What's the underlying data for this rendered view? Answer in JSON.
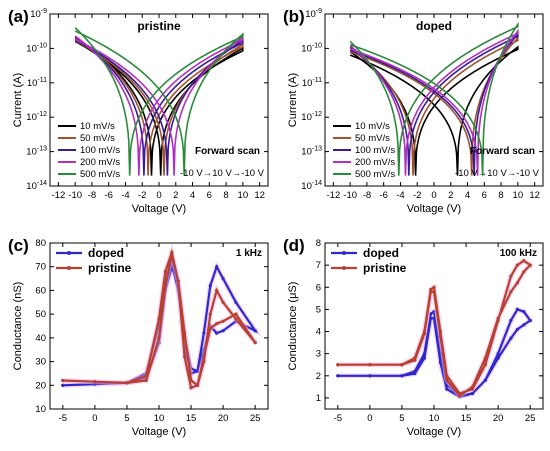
{
  "chart_data": [
    {
      "panel": "(a)",
      "type": "line",
      "title": "pristine",
      "xlabel": "Voltage (V)",
      "ylabel": "Current (A)",
      "xlim": [
        -13,
        13
      ],
      "xticks": [
        -12,
        -10,
        -8,
        -6,
        -4,
        -2,
        0,
        2,
        4,
        6,
        8,
        10,
        12
      ],
      "y_scale": "log",
      "ylim": [
        1e-14,
        1e-09
      ],
      "yticks": [
        1e-14,
        1e-13,
        1e-12,
        1e-11,
        1e-10,
        1e-09
      ],
      "ytick_labels": [
        "10^-14",
        "10^-13",
        "10^-12",
        "10^-11",
        "10^-10",
        "10^-9"
      ],
      "legend_position": "bottom-left",
      "annotation": {
        "title": "Forward scan",
        "text": "-10 V→10 V→-10 V"
      },
      "series": [
        {
          "name": "10 mV/s",
          "color": "#000000",
          "v_min_fwd": -0.9,
          "v_min_bwd": 0.2,
          "i_left": 2e-10,
          "i_right": 1e-10
        },
        {
          "name": "50 mV/s",
          "color": "#a0522d",
          "v_min_fwd": -1.3,
          "v_min_bwd": 0.6,
          "i_left": 2.1e-10,
          "i_right": 1.3e-10
        },
        {
          "name": "100 mV/s",
          "color": "#3a1a9a",
          "v_min_fwd": -1.8,
          "v_min_bwd": 1.0,
          "i_left": 2.2e-10,
          "i_right": 1.7e-10
        },
        {
          "name": "200 mV/s",
          "color": "#b030c0",
          "v_min_fwd": -2.4,
          "v_min_bwd": 1.8,
          "i_left": 2.3e-10,
          "i_right": 2.1e-10
        },
        {
          "name": "500 mV/s",
          "color": "#2a8a3a",
          "v_min_fwd": -3.5,
          "v_min_bwd": 3.0,
          "i_left": 4e-10,
          "i_right": 2.6e-10
        }
      ]
    },
    {
      "panel": "(b)",
      "type": "line",
      "title": "doped",
      "xlabel": "Voltage (V)",
      "ylabel": "Current (A)",
      "xlim": [
        -13,
        13
      ],
      "xticks": [
        -12,
        -10,
        -8,
        -6,
        -4,
        -2,
        0,
        2,
        4,
        6,
        8,
        10,
        12
      ],
      "y_scale": "log",
      "ylim": [
        1e-14,
        1e-09
      ],
      "yticks": [
        1e-14,
        1e-13,
        1e-12,
        1e-11,
        1e-10,
        1e-09
      ],
      "ytick_labels": [
        "10^-14",
        "10^-13",
        "10^-12",
        "10^-11",
        "10^-10",
        "10^-9"
      ],
      "legend_position": "bottom-left",
      "annotation": {
        "title": "Forward scan",
        "text": "-10 V→10 V→-10 V"
      },
      "series": [
        {
          "name": "10 mV/s",
          "color": "#000000",
          "v_min_fwd": -2.2,
          "v_min_bwd": 2.8,
          "i_left": 8e-11,
          "i_right": 1.1e-10
        },
        {
          "name": "50 mV/s",
          "color": "#a0522d",
          "v_min_fwd": -2.5,
          "v_min_bwd": 4.5,
          "i_left": 1e-10,
          "i_right": 2e-10
        },
        {
          "name": "100 mV/s",
          "color": "#3a1a9a",
          "v_min_fwd": -3.0,
          "v_min_bwd": 4.8,
          "i_left": 1.1e-10,
          "i_right": 2.6e-10
        },
        {
          "name": "200 mV/s",
          "color": "#b030c0",
          "v_min_fwd": -3.4,
          "v_min_bwd": 5.2,
          "i_left": 1.2e-10,
          "i_right": 3.2e-10
        },
        {
          "name": "500 mV/s",
          "color": "#2a8a3a",
          "v_min_fwd": -4.2,
          "v_min_bwd": 5.8,
          "i_left": 1.6e-10,
          "i_right": 5e-10
        }
      ]
    },
    {
      "panel": "(c)",
      "type": "line",
      "xlabel": "Voltage (V)",
      "ylabel": "Conductance (nS)",
      "xlim": [
        -7,
        27
      ],
      "xticks": [
        -5,
        0,
        5,
        10,
        15,
        20,
        25
      ],
      "ylim": [
        10,
        80
      ],
      "yticks": [
        10,
        20,
        30,
        40,
        50,
        60,
        70,
        80
      ],
      "legend_position": "top-left",
      "annotation": {
        "text": "1 kHz"
      },
      "series": [
        {
          "name": "doped",
          "color": "#2a2ad0",
          "forward": [
            [
              -5,
              20
            ],
            [
              0,
              20.5
            ],
            [
              5,
              21
            ],
            [
              8,
              25
            ],
            [
              10,
              45
            ],
            [
              11,
              65
            ],
            [
              12,
              72
            ],
            [
              13,
              60
            ],
            [
              14,
              40
            ],
            [
              15,
              27
            ],
            [
              16,
              26
            ],
            [
              17,
              42
            ],
            [
              18,
              62
            ],
            [
              19,
              70
            ],
            [
              20,
              65
            ],
            [
              22,
              55
            ],
            [
              25,
              43
            ]
          ],
          "backward": [
            [
              25,
              43
            ],
            [
              22,
              47
            ],
            [
              20,
              43
            ],
            [
              19,
              42
            ],
            [
              18,
              45
            ],
            [
              17,
              35
            ],
            [
              16,
              26
            ],
            [
              15,
              25
            ],
            [
              14,
              36
            ],
            [
              13,
              62
            ],
            [
              12,
              70
            ],
            [
              11,
              60
            ],
            [
              10,
              38
            ],
            [
              8,
              23
            ],
            [
              5,
              21
            ],
            [
              0,
              20.5
            ],
            [
              -5,
              20
            ]
          ]
        },
        {
          "name": "pristine",
          "color": "#b84030",
          "forward": [
            [
              -5,
              22
            ],
            [
              0,
              21.5
            ],
            [
              5,
              21
            ],
            [
              8,
              24
            ],
            [
              10,
              48
            ],
            [
              11,
              68
            ],
            [
              12,
              76
            ],
            [
              13,
              64
            ],
            [
              14,
              42
            ],
            [
              15,
              22
            ],
            [
              16,
              20
            ],
            [
              17,
              30
            ],
            [
              18,
              50
            ],
            [
              19,
              60
            ],
            [
              20,
              55
            ],
            [
              22,
              48
            ],
            [
              25,
              38
            ]
          ],
          "backward": [
            [
              25,
              38
            ],
            [
              22,
              50
            ],
            [
              20,
              47
            ],
            [
              19,
              46
            ],
            [
              18,
              44
            ],
            [
              17,
              32
            ],
            [
              16,
              20
            ],
            [
              15,
              19
            ],
            [
              14,
              32
            ],
            [
              13,
              64
            ],
            [
              12,
              75
            ],
            [
              11,
              62
            ],
            [
              10,
              40
            ],
            [
              8,
              22
            ],
            [
              5,
              21
            ],
            [
              0,
              21.5
            ],
            [
              -5,
              22
            ]
          ]
        }
      ]
    },
    {
      "panel": "(d)",
      "type": "line",
      "xlabel": "Voltage (V)",
      "ylabel": "Conductance (μS)",
      "xlim": [
        -7,
        27
      ],
      "xticks": [
        -5,
        0,
        5,
        10,
        15,
        20,
        25
      ],
      "ylim": [
        0.5,
        8
      ],
      "yticks": [
        1,
        2,
        3,
        4,
        5,
        6,
        7,
        8
      ],
      "legend_position": "top-left",
      "annotation": {
        "text": "100 kHz"
      },
      "series": [
        {
          "name": "doped",
          "color": "#2a2ad0",
          "forward": [
            [
              -5,
              2
            ],
            [
              0,
              2
            ],
            [
              5,
              2
            ],
            [
              7,
              2.2
            ],
            [
              8.5,
              3
            ],
            [
              9.5,
              4.8
            ],
            [
              10,
              4.9
            ],
            [
              11,
              3
            ],
            [
              12,
              1.6
            ],
            [
              14,
              1.1
            ],
            [
              16,
              1.2
            ],
            [
              18,
              1.8
            ],
            [
              20,
              3
            ],
            [
              22,
              4.5
            ],
            [
              23,
              5
            ],
            [
              24,
              4.9
            ],
            [
              25,
              4.5
            ]
          ],
          "backward": [
            [
              25,
              4.5
            ],
            [
              24,
              4.3
            ],
            [
              23,
              4.1
            ],
            [
              22,
              3.7
            ],
            [
              20,
              2.8
            ],
            [
              18,
              1.8
            ],
            [
              16,
              1.2
            ],
            [
              14,
              1.05
            ],
            [
              12,
              1.4
            ],
            [
              11,
              2.6
            ],
            [
              10,
              4.6
            ],
            [
              9.5,
              4.6
            ],
            [
              8.5,
              2.8
            ],
            [
              7,
              2.1
            ],
            [
              5,
              2
            ],
            [
              0,
              2
            ],
            [
              -5,
              2
            ]
          ]
        },
        {
          "name": "pristine",
          "color": "#b84030",
          "forward": [
            [
              -5,
              2.5
            ],
            [
              0,
              2.5
            ],
            [
              5,
              2.5
            ],
            [
              7,
              2.8
            ],
            [
              8.5,
              4
            ],
            [
              9.5,
              5.9
            ],
            [
              10,
              6
            ],
            [
              11,
              4
            ],
            [
              12,
              2
            ],
            [
              14,
              1.2
            ],
            [
              16,
              1.4
            ],
            [
              18,
              2.5
            ],
            [
              20,
              4.5
            ],
            [
              22,
              6.5
            ],
            [
              23,
              7
            ],
            [
              24,
              7.2
            ],
            [
              25,
              7
            ]
          ],
          "backward": [
            [
              25,
              7
            ],
            [
              24,
              6.7
            ],
            [
              23,
              6.2
            ],
            [
              22,
              5.8
            ],
            [
              20,
              4.6
            ],
            [
              18,
              2.8
            ],
            [
              16,
              1.5
            ],
            [
              14,
              1.1
            ],
            [
              12,
              1.8
            ],
            [
              11,
              3.8
            ],
            [
              10,
              5.8
            ],
            [
              9.5,
              5.8
            ],
            [
              8.5,
              3.9
            ],
            [
              7,
              2.7
            ],
            [
              5,
              2.5
            ],
            [
              0,
              2.5
            ],
            [
              -5,
              2.5
            ]
          ]
        }
      ]
    }
  ]
}
